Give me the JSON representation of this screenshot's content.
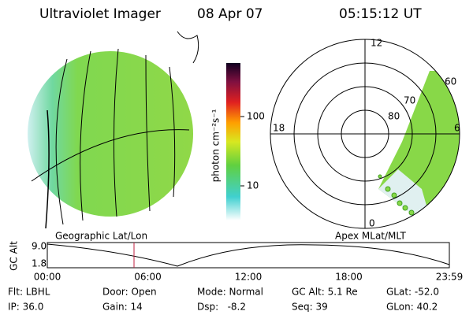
{
  "header": {
    "title": "Ultraviolet Imager",
    "date": "08 Apr 07",
    "time": "05:15:12 UT"
  },
  "colorbar": {
    "label": "photon cm⁻²s⁻¹",
    "ticks": [
      "100",
      "10"
    ]
  },
  "polar": {
    "mlt_labels": [
      "12",
      "18",
      "6",
      "0"
    ],
    "mlat_labels": [
      "60",
      "70",
      "80"
    ]
  },
  "panel_labels": [
    "Geographic Lat/Lon",
    "Apex MLat/MLT"
  ],
  "timeline": {
    "ylabel": "GC Alt",
    "yticks": [
      "9.0",
      "1.8"
    ],
    "xticks": [
      "00:00",
      "06:00",
      "12:00",
      "18:00",
      "23:59"
    ]
  },
  "info": {
    "rows": [
      [
        "Flt: LBHL",
        "Door: Open",
        "Mode: Normal",
        "GC Alt: 5.1 Re",
        "GLat: -52.0"
      ],
      [
        "IP: 36.0",
        "Gain: 14",
        "Dsp:   -8.2",
        "Seq: 39",
        "GLon: 40.2"
      ]
    ]
  }
}
